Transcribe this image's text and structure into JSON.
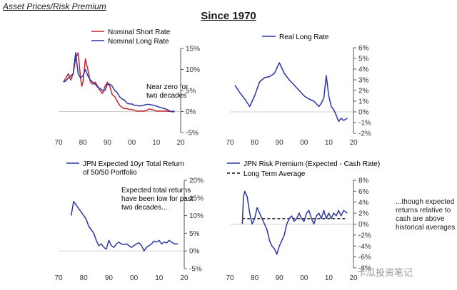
{
  "header": "Asset Prices/Risk Premium",
  "main_title": "Since 1970",
  "side_note": "...though expected returns relative to cash are above historical averages",
  "watermark": "卡瓜投资笔记",
  "colors": {
    "navy": "#2c35a8",
    "red": "#c8202f",
    "axis": "#555555"
  },
  "chart_data": [
    {
      "type": "line",
      "legend": [
        "Nominal Short Rate",
        "Nominal Long Rate"
      ],
      "annotation": "Near zero for two decades",
      "x_tick_labels": [
        "70",
        "80",
        "90",
        "00",
        "10",
        "20"
      ],
      "y_tick_labels": [
        "15%",
        "10%",
        "5%",
        "0%",
        "-5%"
      ],
      "xlim": [
        1970,
        2020
      ],
      "ylim": [
        -5,
        15
      ],
      "series": [
        {
          "name": "Nominal Short Rate",
          "color": "#c8202f",
          "x": [
            1972,
            1973,
            1974,
            1975,
            1976,
            1977,
            1978,
            1979,
            1979.5,
            1980,
            1981,
            1982,
            1983,
            1984,
            1985,
            1986,
            1987,
            1988,
            1989,
            1990,
            1991,
            1992,
            1993,
            1994,
            1995,
            1996,
            1997,
            1998,
            1999,
            2000,
            2001,
            2002,
            2003,
            2004,
            2005,
            2006,
            2007,
            2008,
            2009,
            2010,
            2012,
            2014,
            2016,
            2017.5
          ],
          "values": [
            7,
            8,
            9,
            7.5,
            9,
            12.5,
            14,
            8,
            6,
            7,
            12.5,
            10,
            7,
            6.5,
            7,
            6,
            5,
            4.3,
            6,
            7,
            6,
            4,
            3.5,
            2.5,
            1.5,
            1,
            0.7,
            0.7,
            0.5,
            0.5,
            0.3,
            0.1,
            0.1,
            0.1,
            0.1,
            0.2,
            0.6,
            0.5,
            0.3,
            0.1,
            0.1,
            0.1,
            0,
            -0.1
          ]
        },
        {
          "name": "Nominal Long Rate",
          "color": "#2c35a8",
          "x": [
            1972,
            1973,
            1974,
            1975,
            1976,
            1977,
            1978,
            1979,
            1980,
            1981,
            1982,
            1983,
            1984,
            1985,
            1986,
            1987,
            1988,
            1989,
            1990,
            1991,
            1992,
            1993,
            1994,
            1995,
            1996,
            1997,
            1998,
            1999,
            2000,
            2001,
            2002,
            2003,
            2004,
            2005,
            2006,
            2007,
            2008,
            2009,
            2010,
            2012,
            2014,
            2016,
            2017.5
          ],
          "values": [
            7,
            7.3,
            8,
            8.5,
            9,
            14,
            9,
            8,
            8.5,
            10,
            8.5,
            7.5,
            7,
            6.5,
            5.8,
            5.5,
            5,
            5,
            6.5,
            6.5,
            6,
            5,
            4.5,
            3.5,
            3,
            2.7,
            2,
            1.8,
            1.8,
            1.5,
            1.5,
            1.3,
            1.4,
            1.5,
            1.7,
            1.7,
            1.6,
            1.5,
            1.3,
            0.9,
            0.6,
            0,
            0.1
          ]
        }
      ]
    },
    {
      "type": "line",
      "legend": [
        "Real Long Rate"
      ],
      "x_tick_labels": [
        "70",
        "80",
        "90",
        "00",
        "10",
        "20"
      ],
      "y_tick_labels": [
        "6%",
        "5%",
        "4%",
        "3%",
        "2%",
        "1%",
        "0%",
        "-1%",
        "-2%"
      ],
      "xlim": [
        1970,
        2020
      ],
      "ylim": [
        -2,
        6
      ],
      "series": [
        {
          "name": "Real Long Rate",
          "color": "#2c35a8",
          "x": [
            1972,
            1974,
            1976,
            1978,
            1980,
            1982,
            1984,
            1986,
            1988,
            1990,
            1992,
            1994,
            1996,
            1998,
            2000,
            2002,
            2004,
            2006,
            2007,
            2008,
            2009,
            2010,
            2011,
            2012,
            2013,
            2014,
            2015,
            2016,
            2017.5
          ],
          "values": [
            2.5,
            1.8,
            1.2,
            0.5,
            1.5,
            2.8,
            3.2,
            3.3,
            3.6,
            4.6,
            3.6,
            3.0,
            2.5,
            2.0,
            1.5,
            1.2,
            1.0,
            0.5,
            0.8,
            1.3,
            3.4,
            1.5,
            0.5,
            0.2,
            -0.3,
            -0.9,
            -0.6,
            -0.8,
            -0.6
          ]
        }
      ]
    },
    {
      "type": "line",
      "legend": [
        "JPN Expected 10yr Total Return of 50/50 Portfolio"
      ],
      "annotation": "Expected total returns have been low for past two decades...",
      "x_tick_labels": [
        "70",
        "80",
        "90",
        "00",
        "10",
        "20"
      ],
      "y_tick_labels": [
        "20%",
        "15%",
        "10%",
        "5%",
        "0%",
        "-5%"
      ],
      "xlim": [
        1970,
        2020
      ],
      "ylim": [
        -5,
        20
      ],
      "series": [
        {
          "name": "JPN Expected 10yr Total Return",
          "color": "#2c35a8",
          "x": [
            1975,
            1976,
            1977,
            1978,
            1979,
            1980,
            1981,
            1982,
            1983,
            1984,
            1985,
            1986,
            1987,
            1988,
            1989,
            1990,
            1991,
            1992,
            1993,
            1994,
            1995,
            1996,
            1997,
            1998,
            1999,
            2000,
            2001,
            2002,
            2003,
            2004,
            2005,
            2006,
            2007,
            2008,
            2009,
            2010,
            2011,
            2012,
            2013,
            2014,
            2015,
            2016,
            2017.5
          ],
          "values": [
            10,
            14,
            13,
            12,
            11,
            10,
            9,
            7,
            6,
            5,
            3,
            1.5,
            2,
            1,
            0.5,
            3,
            1.5,
            1,
            2,
            2.5,
            2,
            1.8,
            2,
            1.5,
            1,
            1.5,
            2,
            2.3,
            1.5,
            0,
            1,
            1.5,
            2,
            2.8,
            2.5,
            3,
            2,
            2.5,
            2.3,
            3,
            2.5,
            2,
            2
          ]
        }
      ]
    },
    {
      "type": "line",
      "legend": [
        "JPN Risk Premium (Expected - Cash Rate)",
        "Long Term Average"
      ],
      "x_tick_labels": [
        "70",
        "80",
        "90",
        "00",
        "10",
        "20"
      ],
      "y_tick_labels": [
        "8%",
        "6%",
        "4%",
        "2%",
        "0%",
        "-2%",
        "-4%",
        "-6%",
        "-8%"
      ],
      "xlim": [
        1970,
        2020
      ],
      "ylim": [
        -8,
        8
      ],
      "long_term_average": 1,
      "series": [
        {
          "name": "JPN Risk Premium",
          "color": "#2c35a8",
          "x": [
            1975,
            1975.5,
            1976,
            1977,
            1978,
            1979,
            1980,
            1981,
            1982,
            1983,
            1984,
            1985,
            1986,
            1987,
            1988,
            1989,
            1990,
            1991,
            1992,
            1993,
            1994,
            1995,
            1996,
            1997,
            1998,
            1999,
            2000,
            2001,
            2002,
            2003,
            2004,
            2005,
            2006,
            2007,
            2008,
            2009,
            2010,
            2011,
            2012,
            2013,
            2014,
            2015,
            2016,
            2017.5
          ],
          "values": [
            0,
            5,
            6,
            5,
            2,
            0,
            1,
            3,
            2,
            1,
            0,
            -1,
            -3,
            -4,
            -4.5,
            -5.5,
            -4,
            -3,
            -2,
            0,
            1,
            1.5,
            0.5,
            1,
            2,
            1,
            0.5,
            2,
            2.5,
            1,
            0,
            1.5,
            2,
            1,
            2.5,
            1,
            2,
            1,
            2,
            1.5,
            2.5,
            1.5,
            2.5,
            2
          ]
        }
      ]
    }
  ]
}
